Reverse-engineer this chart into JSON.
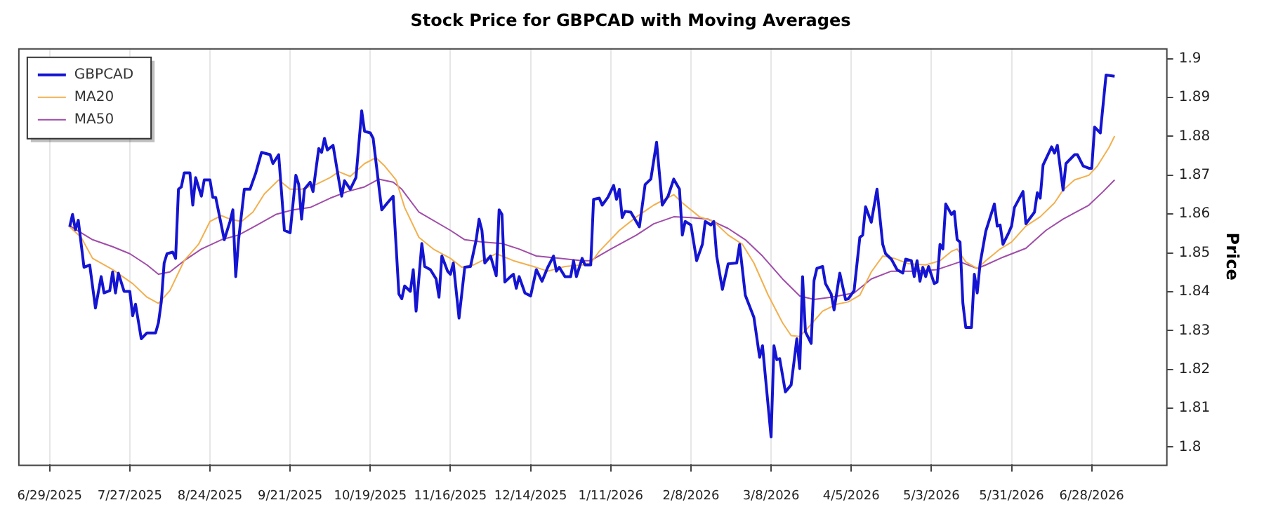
{
  "chart_data": {
    "type": "line",
    "title": "Stock Price for GBPCAD with Moving Averages",
    "ylabel": "Price",
    "xlim": [
      "2025-06-18",
      "2026-07-24"
    ],
    "xticks": [
      {
        "value": "2025-06-29",
        "label": "6/29/2025"
      },
      {
        "value": "2025-07-27",
        "label": "7/27/2025"
      },
      {
        "value": "2025-08-24",
        "label": "8/24/2025"
      },
      {
        "value": "2025-09-21",
        "label": "9/21/2025"
      },
      {
        "value": "2025-10-19",
        "label": "10/19/2025"
      },
      {
        "value": "2025-11-16",
        "label": "11/16/2025"
      },
      {
        "value": "2025-12-14",
        "label": "12/14/2025"
      },
      {
        "value": "2026-01-11",
        "label": "1/11/2026"
      },
      {
        "value": "2026-02-08",
        "label": "2/8/2026"
      },
      {
        "value": "2026-03-08",
        "label": "3/8/2026"
      },
      {
        "value": "2026-04-05",
        "label": "4/5/2026"
      },
      {
        "value": "2026-05-03",
        "label": "5/3/2026"
      },
      {
        "value": "2026-05-31",
        "label": "5/31/2026"
      },
      {
        "value": "2026-06-28",
        "label": "6/28/2026"
      }
    ],
    "ylim": [
      1.7955,
      1.9027
    ],
    "yticks": [
      1.8,
      1.81,
      1.82,
      1.83,
      1.84,
      1.85,
      1.86,
      1.87,
      1.88,
      1.89,
      1.9
    ],
    "grid": "x",
    "legend": "top left",
    "marker": "none",
    "series": [
      {
        "name": "GBPCAD",
        "color": "#1414d2",
        "x": [
          "2025-07-06",
          "2025-07-07",
          "2025-07-08",
          "2025-07-09",
          "2025-07-11",
          "2025-07-13",
          "2025-07-15",
          "2025-07-17",
          "2025-07-18",
          "2025-07-20",
          "2025-07-21",
          "2025-07-22",
          "2025-07-23",
          "2025-07-25",
          "2025-07-27",
          "2025-07-28",
          "2025-07-29",
          "2025-07-31",
          "2025-08-02",
          "2025-08-05",
          "2025-08-06",
          "2025-08-07",
          "2025-08-08",
          "2025-08-09",
          "2025-08-11",
          "2025-08-12",
          "2025-08-13",
          "2025-08-14",
          "2025-08-15",
          "2025-08-17",
          "2025-08-18",
          "2025-08-19",
          "2025-08-21",
          "2025-08-22",
          "2025-08-24",
          "2025-08-25",
          "2025-08-26",
          "2025-08-29",
          "2025-08-31",
          "2025-09-01",
          "2025-09-02",
          "2025-09-03",
          "2025-09-05",
          "2025-09-07",
          "2025-09-09",
          "2025-09-11",
          "2025-09-14",
          "2025-09-15",
          "2025-09-17",
          "2025-09-19",
          "2025-09-21",
          "2025-09-23",
          "2025-09-24",
          "2025-09-25",
          "2025-09-26",
          "2025-09-28",
          "2025-09-29",
          "2025-10-01",
          "2025-10-02",
          "2025-10-03",
          "2025-10-04",
          "2025-10-06",
          "2025-10-08",
          "2025-10-09",
          "2025-10-10",
          "2025-10-12",
          "2025-10-14",
          "2025-10-16",
          "2025-10-17",
          "2025-10-19",
          "2025-10-20",
          "2025-10-23",
          "2025-10-25",
          "2025-10-27",
          "2025-10-29",
          "2025-10-30",
          "2025-10-31",
          "2025-11-02",
          "2025-11-03",
          "2025-11-04",
          "2025-11-06",
          "2025-11-07",
          "2025-11-09",
          "2025-11-11",
          "2025-11-12",
          "2025-11-13",
          "2025-11-15",
          "2025-11-16",
          "2025-11-17",
          "2025-11-19",
          "2025-11-21",
          "2025-11-23",
          "2025-11-25",
          "2025-11-26",
          "2025-11-27",
          "2025-11-28",
          "2025-11-30",
          "2025-12-02",
          "2025-12-03",
          "2025-12-04",
          "2025-12-05",
          "2025-12-07",
          "2025-12-08",
          "2025-12-09",
          "2025-12-10",
          "2025-12-12",
          "2025-12-14",
          "2025-12-16",
          "2025-12-18",
          "2025-12-20",
          "2025-12-22",
          "2025-12-23",
          "2025-12-24",
          "2025-12-26",
          "2025-12-28",
          "2025-12-29",
          "2025-12-30",
          "2026-01-01",
          "2026-01-02",
          "2026-01-04",
          "2026-01-05",
          "2026-01-07",
          "2026-01-08",
          "2026-01-10",
          "2026-01-12",
          "2026-01-13",
          "2026-01-14",
          "2026-01-15",
          "2026-01-16",
          "2026-01-18",
          "2026-01-21",
          "2026-01-23",
          "2026-01-25",
          "2026-01-27",
          "2026-01-29",
          "2026-01-31",
          "2026-02-02",
          "2026-02-04",
          "2026-02-05",
          "2026-02-06",
          "2026-02-08",
          "2026-02-10",
          "2026-02-12",
          "2026-02-13",
          "2026-02-15",
          "2026-02-16",
          "2026-02-17",
          "2026-02-19",
          "2026-02-21",
          "2026-02-24",
          "2026-02-25",
          "2026-02-27",
          "2026-03-02",
          "2026-03-04",
          "2026-03-05",
          "2026-03-08",
          "2026-03-09",
          "2026-03-10",
          "2026-03-11",
          "2026-03-13",
          "2026-03-15",
          "2026-03-17",
          "2026-03-18",
          "2026-03-19",
          "2026-03-20",
          "2026-03-22",
          "2026-03-23",
          "2026-03-24",
          "2026-03-26",
          "2026-03-27",
          "2026-03-29",
          "2026-03-30",
          "2026-04-01",
          "2026-04-03",
          "2026-04-04",
          "2026-04-06",
          "2026-04-08",
          "2026-04-09",
          "2026-04-10",
          "2026-04-12",
          "2026-04-14",
          "2026-04-16",
          "2026-04-17",
          "2026-04-19",
          "2026-04-21",
          "2026-04-23",
          "2026-04-24",
          "2026-04-26",
          "2026-04-27",
          "2026-04-28",
          "2026-04-29",
          "2026-04-30",
          "2026-05-01",
          "2026-05-02",
          "2026-05-04",
          "2026-05-05",
          "2026-05-06",
          "2026-05-07",
          "2026-05-08",
          "2026-05-10",
          "2026-05-11",
          "2026-05-12",
          "2026-05-13",
          "2026-05-14",
          "2026-05-15",
          "2026-05-17",
          "2026-05-18",
          "2026-05-19",
          "2026-05-20",
          "2026-05-22",
          "2026-05-25",
          "2026-05-26",
          "2026-05-27",
          "2026-05-28",
          "2026-05-30",
          "2026-05-31",
          "2026-06-01",
          "2026-06-04",
          "2026-06-05",
          "2026-06-08",
          "2026-06-09",
          "2026-06-10",
          "2026-06-11",
          "2026-06-14",
          "2026-06-15",
          "2026-06-16",
          "2026-06-18",
          "2026-06-19",
          "2026-06-22",
          "2026-06-23",
          "2026-06-25",
          "2026-06-27",
          "2026-06-28",
          "2026-06-29",
          "2026-07-01",
          "2026-07-03",
          "2026-07-06"
        ],
        "values": [
          1.8567,
          1.8599,
          1.856,
          1.8584,
          1.8463,
          1.8469,
          1.8358,
          1.8439,
          1.8397,
          1.8403,
          1.8451,
          1.8397,
          1.8448,
          1.8401,
          1.8401,
          1.8338,
          1.8368,
          1.8279,
          1.8294,
          1.8294,
          1.832,
          1.8374,
          1.8474,
          1.8498,
          1.8502,
          1.8486,
          1.8664,
          1.867,
          1.8706,
          1.8706,
          1.8623,
          1.8694,
          1.8646,
          1.8688,
          1.8688,
          1.8643,
          1.8643,
          1.8534,
          1.8581,
          1.8611,
          1.8439,
          1.8534,
          1.8664,
          1.8664,
          1.8706,
          1.8759,
          1.8753,
          1.873,
          1.8753,
          1.8558,
          1.8552,
          1.87,
          1.8676,
          1.8587,
          1.8664,
          1.8682,
          1.8658,
          1.8769,
          1.8759,
          1.8795,
          1.8765,
          1.8777,
          1.8688,
          1.8646,
          1.8686,
          1.8664,
          1.8694,
          1.8866,
          1.8813,
          1.8809,
          1.8795,
          1.8611,
          1.8629,
          1.8646,
          1.8394,
          1.8382,
          1.8415,
          1.8401,
          1.8457,
          1.835,
          1.8524,
          1.8465,
          1.8457,
          1.8433,
          1.8386,
          1.8492,
          1.8453,
          1.8445,
          1.8474,
          1.8332,
          1.8463,
          1.8465,
          1.8534,
          1.8587,
          1.8558,
          1.8474,
          1.8492,
          1.8441,
          1.8611,
          1.8599,
          1.8425,
          1.8439,
          1.8445,
          1.8409,
          1.8439,
          1.8397,
          1.8389,
          1.8457,
          1.8427,
          1.8463,
          1.8492,
          1.8453,
          1.8463,
          1.8439,
          1.8439,
          1.848,
          1.8439,
          1.8486,
          1.8469,
          1.8469,
          1.8638,
          1.8641,
          1.8623,
          1.8643,
          1.8674,
          1.8638,
          1.8664,
          1.8591,
          1.8607,
          1.8605,
          1.8567,
          1.8676,
          1.869,
          1.8785,
          1.8623,
          1.8646,
          1.869,
          1.8664,
          1.8546,
          1.8581,
          1.8572,
          1.848,
          1.8522,
          1.8581,
          1.8572,
          1.8581,
          1.8492,
          1.8406,
          1.8472,
          1.8474,
          1.8522,
          1.8391,
          1.8334,
          1.8231,
          1.8261,
          1.8026,
          1.8261,
          1.8225,
          1.8228,
          1.8142,
          1.816,
          1.8279,
          1.8202,
          1.8439,
          1.8297,
          1.8267,
          1.8429,
          1.846,
          1.8465,
          1.8421,
          1.8394,
          1.8353,
          1.8448,
          1.838,
          1.8382,
          1.8403,
          1.854,
          1.8546,
          1.8619,
          1.8579,
          1.8664,
          1.8522,
          1.8498,
          1.8484,
          1.8457,
          1.8448,
          1.8484,
          1.848,
          1.8439,
          1.848,
          1.8427,
          1.8463,
          1.8439,
          1.8465,
          1.8421,
          1.8425,
          1.8522,
          1.851,
          1.8626,
          1.8599,
          1.8607,
          1.8534,
          1.8528,
          1.837,
          1.8308,
          1.8308,
          1.8445,
          1.8397,
          1.8472,
          1.8556,
          1.8626,
          1.8569,
          1.8572,
          1.8522,
          1.8552,
          1.8569,
          1.8617,
          1.8658,
          1.8575,
          1.8605,
          1.8655,
          1.8641,
          1.8726,
          1.8773,
          1.8757,
          1.8777,
          1.8662,
          1.873,
          1.8753,
          1.8753,
          1.8724,
          1.8718,
          1.8718,
          1.8824,
          1.8809,
          1.8958,
          1.8955
        ]
      },
      {
        "name": "MA20",
        "color": "#f2b04e",
        "x": [
          "2025-07-06",
          "2025-07-10",
          "2025-07-14",
          "2025-07-21",
          "2025-07-28",
          "2025-08-02",
          "2025-08-06",
          "2025-08-10",
          "2025-08-15",
          "2025-08-20",
          "2025-08-24",
          "2025-08-28",
          "2025-08-31",
          "2025-09-04",
          "2025-09-08",
          "2025-09-12",
          "2025-09-17",
          "2025-09-21",
          "2025-09-25",
          "2025-09-30",
          "2025-10-05",
          "2025-10-08",
          "2025-10-12",
          "2025-10-17",
          "2025-10-21",
          "2025-10-24",
          "2025-10-28",
          "2025-10-31",
          "2025-11-05",
          "2025-11-10",
          "2025-11-16",
          "2025-11-20",
          "2025-11-24",
          "2025-12-02",
          "2025-12-08",
          "2025-12-15",
          "2025-12-20",
          "2025-12-26",
          "2026-01-01",
          "2026-01-04",
          "2026-01-07",
          "2026-01-14",
          "2026-01-20",
          "2026-01-26",
          "2026-02-02",
          "2026-02-05",
          "2026-02-11",
          "2026-02-16",
          "2026-02-21",
          "2026-02-26",
          "2026-03-02",
          "2026-03-07",
          "2026-03-12",
          "2026-03-15",
          "2026-03-18",
          "2026-03-21",
          "2026-03-26",
          "2026-03-31",
          "2026-04-04",
          "2026-04-08",
          "2026-04-12",
          "2026-04-16",
          "2026-04-20",
          "2026-04-25",
          "2026-05-01",
          "2026-05-06",
          "2026-05-10",
          "2026-05-12",
          "2026-05-15",
          "2026-05-19",
          "2026-05-22",
          "2026-05-27",
          "2026-05-31",
          "2026-06-05",
          "2026-06-10",
          "2026-06-15",
          "2026-06-18",
          "2026-06-22",
          "2026-06-27",
          "2026-06-30",
          "2026-07-04",
          "2026-07-06"
        ],
        "values": [
          1.8567,
          1.854,
          1.8486,
          1.8457,
          1.8421,
          1.8386,
          1.837,
          1.8403,
          1.848,
          1.8522,
          1.8581,
          1.8596,
          1.8587,
          1.8581,
          1.8605,
          1.8652,
          1.8688,
          1.8664,
          1.8664,
          1.8676,
          1.8694,
          1.8709,
          1.8697,
          1.873,
          1.8745,
          1.8724,
          1.8688,
          1.8617,
          1.854,
          1.851,
          1.8486,
          1.8463,
          1.8469,
          1.8498,
          1.848,
          1.8465,
          1.8453,
          1.8465,
          1.8469,
          1.8474,
          1.8504,
          1.8558,
          1.8593,
          1.8623,
          1.865,
          1.8629,
          1.8593,
          1.8581,
          1.8546,
          1.8522,
          1.8474,
          1.8391,
          1.832,
          1.8287,
          1.8285,
          1.8308,
          1.835,
          1.8368,
          1.8374,
          1.8391,
          1.8451,
          1.8492,
          1.8486,
          1.8472,
          1.8469,
          1.848,
          1.8504,
          1.851,
          1.8477,
          1.846,
          1.848,
          1.851,
          1.8528,
          1.8569,
          1.8593,
          1.8629,
          1.8662,
          1.8688,
          1.87,
          1.8724,
          1.8771,
          1.8801
        ]
      },
      {
        "name": "MA50",
        "color": "#a04ca8",
        "x": [
          "2025-07-06",
          "2025-07-14",
          "2025-07-21",
          "2025-07-27",
          "2025-08-02",
          "2025-08-06",
          "2025-08-10",
          "2025-08-15",
          "2025-08-21",
          "2025-08-28",
          "2025-09-03",
          "2025-09-09",
          "2025-09-16",
          "2025-09-22",
          "2025-09-28",
          "2025-10-05",
          "2025-10-11",
          "2025-10-17",
          "2025-10-22",
          "2025-10-27",
          "2025-10-30",
          "2025-11-05",
          "2025-11-16",
          "2025-11-21",
          "2025-11-27",
          "2025-12-04",
          "2025-12-10",
          "2025-12-16",
          "2025-12-24",
          "2026-01-01",
          "2026-01-04",
          "2026-01-11",
          "2026-01-20",
          "2026-01-26",
          "2026-02-02",
          "2026-02-08",
          "2026-02-14",
          "2026-02-21",
          "2026-02-27",
          "2026-03-05",
          "2026-03-12",
          "2026-03-18",
          "2026-03-23",
          "2026-03-29",
          "2026-04-06",
          "2026-04-12",
          "2026-04-19",
          "2026-04-27",
          "2026-05-05",
          "2026-05-13",
          "2026-05-19",
          "2026-05-22",
          "2026-05-28",
          "2026-06-05",
          "2026-06-12",
          "2026-06-18",
          "2026-06-27",
          "2026-07-02",
          "2026-07-06"
        ],
        "values": [
          1.857,
          1.8534,
          1.8516,
          1.8498,
          1.8469,
          1.8445,
          1.8451,
          1.848,
          1.851,
          1.8534,
          1.8546,
          1.857,
          1.8599,
          1.8611,
          1.8617,
          1.8641,
          1.8658,
          1.867,
          1.869,
          1.8682,
          1.8664,
          1.8605,
          1.8558,
          1.8534,
          1.8528,
          1.8524,
          1.851,
          1.8492,
          1.8486,
          1.848,
          1.848,
          1.851,
          1.8546,
          1.8575,
          1.8593,
          1.8591,
          1.8587,
          1.8563,
          1.8534,
          1.8492,
          1.8433,
          1.8389,
          1.838,
          1.8386,
          1.8397,
          1.8433,
          1.8453,
          1.8453,
          1.8457,
          1.8477,
          1.846,
          1.8469,
          1.8489,
          1.8512,
          1.8558,
          1.8587,
          1.8623,
          1.8658,
          1.8688
        ]
      }
    ]
  }
}
